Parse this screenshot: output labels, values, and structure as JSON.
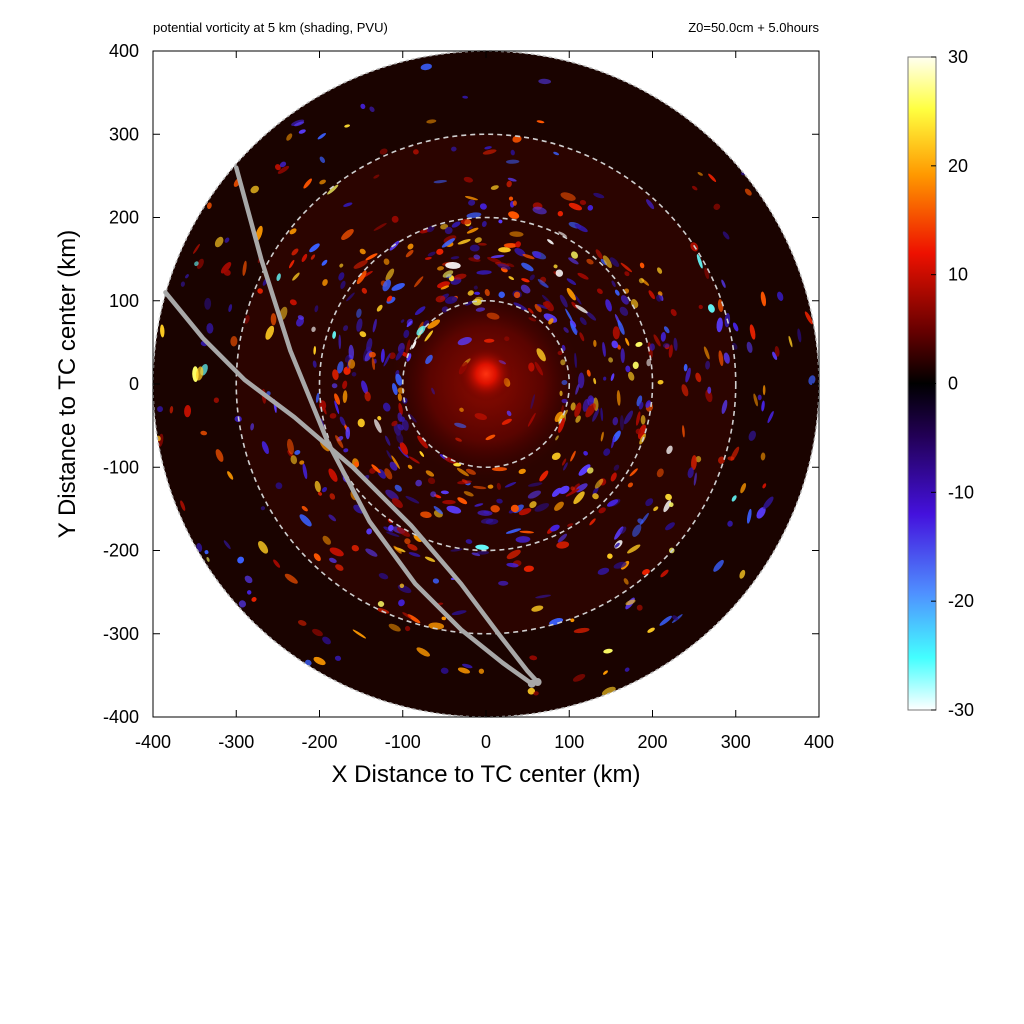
{
  "chart_data": {
    "type": "heatmap",
    "title_left": "potential vorticity at 5 km (shading, PVU)",
    "title_right": "Z0=50.0cm  + 5.0hours",
    "xlabel": "X Distance to TC center (km)",
    "ylabel": "Y Distance to TC center (km)",
    "xlim": [
      -400,
      400
    ],
    "ylim": [
      -400,
      400
    ],
    "x_ticks": [
      "-400",
      "-300",
      "-200",
      "-100",
      "0",
      "100",
      "200",
      "300",
      "400"
    ],
    "y_ticks": [
      "400",
      "300",
      "200",
      "100",
      "0",
      "-100",
      "-200",
      "-300",
      "-400"
    ],
    "x_tick_values": [
      -400,
      -300,
      -200,
      -100,
      0,
      100,
      200,
      300,
      400
    ],
    "y_tick_values": [
      400,
      300,
      200,
      100,
      0,
      -100,
      -200,
      -300,
      -400
    ],
    "domain_radius_km": 400,
    "range_rings_km": [
      100,
      200,
      300
    ],
    "colorbar": {
      "min": -30,
      "max": 30,
      "ticks": [
        "30",
        "20",
        "10",
        "0",
        "-10",
        "-20",
        "-30"
      ],
      "tick_values": [
        30,
        20,
        10,
        0,
        -10,
        -20,
        -30
      ],
      "colors_high_to_low": [
        "#fffff0",
        "#ffff40",
        "#ff9900",
        "#ee1100",
        "#660000",
        "#000000",
        "#220055",
        "#4411dd",
        "#4f8fff",
        "#44ffff",
        "#ffffff"
      ]
    },
    "flight_tracks": [
      {
        "color": "#a8a8a8",
        "points": [
          [
            -300,
            260
          ],
          [
            -270,
            150
          ],
          [
            -235,
            40
          ],
          [
            -190,
            -70
          ],
          [
            -140,
            -165
          ],
          [
            -85,
            -240
          ],
          [
            -30,
            -295
          ],
          [
            20,
            -335
          ],
          [
            55,
            -360
          ]
        ]
      },
      {
        "color": "#a8a8a8",
        "points": [
          [
            -385,
            110
          ],
          [
            -340,
            55
          ],
          [
            -290,
            5
          ],
          [
            -230,
            -40
          ],
          [
            -160,
            -100
          ],
          [
            -90,
            -170
          ],
          [
            -30,
            -240
          ],
          [
            15,
            -300
          ],
          [
            50,
            -345
          ],
          [
            62,
            -358
          ]
        ]
      }
    ],
    "eye_center": [
      5,
      10
    ]
  }
}
